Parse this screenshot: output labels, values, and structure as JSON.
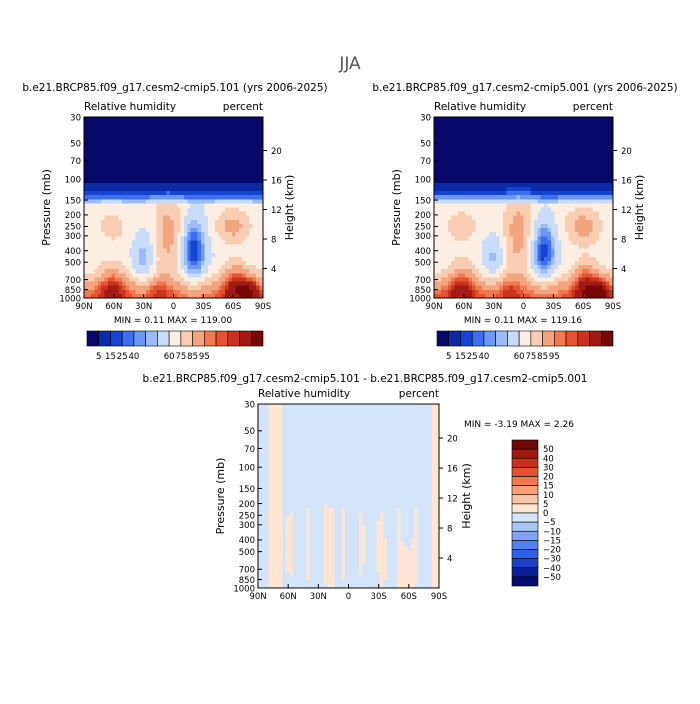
{
  "figure": {
    "season": "JJA"
  },
  "colors": {
    "rh": [
      "#08086b",
      "#0a2aa6",
      "#1444d4",
      "#3d6ef0",
      "#6a98f5",
      "#9bbcf5",
      "#c9dcf7",
      "#fbeee2",
      "#f8cdb2",
      "#f4a57e",
      "#ef7a51",
      "#e55430",
      "#c9331e",
      "#a11b14",
      "#76080a"
    ],
    "diff": [
      "#060a6e",
      "#0a2299",
      "#1742c8",
      "#2d60e8",
      "#4f82f0",
      "#7ea5f3",
      "#a9c5f5",
      "#d4e5fa",
      "#fde7d4",
      "#f9c7a6",
      "#f6a176",
      "#f07a4e",
      "#e25430",
      "#c8301c",
      "#a01810",
      "#720707"
    ]
  },
  "chart_data": [
    {
      "type": "contour",
      "title": "b.e21.BRCP85.f09_g17.cesm2-cmip5.101 (yrs 2006-2025)",
      "left_label": "Relative humidity",
      "right_label": "percent",
      "xlabel": "",
      "ylabel": "Pressure (mb)",
      "y2label": "Height (km)",
      "x_ticks": [
        "90N",
        "60N",
        "30N",
        "0",
        "30S",
        "60S",
        "90S"
      ],
      "y_ticks": [
        {
          "p": 30,
          "label": "30"
        },
        {
          "p": 50,
          "label": "50"
        },
        {
          "p": 70,
          "label": "70"
        },
        {
          "p": 100,
          "label": "100"
        },
        {
          "p": 150,
          "label": "150"
        },
        {
          "p": 200,
          "label": "200"
        },
        {
          "p": 250,
          "label": "250"
        },
        {
          "p": 300,
          "label": "300"
        },
        {
          "p": 400,
          "label": "400"
        },
        {
          "p": 500,
          "label": "500"
        },
        {
          "p": 700,
          "label": "700"
        },
        {
          "p": 850,
          "label": "850"
        },
        {
          "p": 1000,
          "label": "1000"
        }
      ],
      "y2_ticks": [
        {
          "km": 20,
          "label": "20"
        },
        {
          "km": 16,
          "label": "16"
        },
        {
          "km": 12,
          "label": "12"
        },
        {
          "km": 8,
          "label": "8"
        },
        {
          "km": 4,
          "label": "4"
        }
      ],
      "stats": {
        "min_label": "MIN =",
        "min": "0.11",
        "max_label": "MAX =",
        "max": "119.00"
      },
      "colorbar": {
        "orientation": "horizontal",
        "labels": [
          "5",
          "15",
          "25",
          "40",
          "60",
          "75",
          "85",
          "95"
        ]
      }
    },
    {
      "type": "contour",
      "title": "b.e21.BRCP85.f09_g17.cesm2-cmip5.001 (yrs 2006-2025)",
      "left_label": "Relative humidity",
      "right_label": "percent",
      "xlabel": "",
      "ylabel": "Pressure (mb)",
      "y2label": "Height (km)",
      "x_ticks": [
        "90N",
        "60N",
        "30N",
        "0",
        "30S",
        "60S",
        "90S"
      ],
      "y_ticks": [
        {
          "p": 30,
          "label": "30"
        },
        {
          "p": 50,
          "label": "50"
        },
        {
          "p": 70,
          "label": "70"
        },
        {
          "p": 100,
          "label": "100"
        },
        {
          "p": 150,
          "label": "150"
        },
        {
          "p": 200,
          "label": "200"
        },
        {
          "p": 250,
          "label": "250"
        },
        {
          "p": 300,
          "label": "300"
        },
        {
          "p": 400,
          "label": "400"
        },
        {
          "p": 500,
          "label": "500"
        },
        {
          "p": 700,
          "label": "700"
        },
        {
          "p": 850,
          "label": "850"
        },
        {
          "p": 1000,
          "label": "1000"
        }
      ],
      "y2_ticks": [
        {
          "km": 20,
          "label": "20"
        },
        {
          "km": 16,
          "label": "16"
        },
        {
          "km": 12,
          "label": "12"
        },
        {
          "km": 8,
          "label": "8"
        },
        {
          "km": 4,
          "label": "4"
        }
      ],
      "stats": {
        "min_label": "MIN =",
        "min": "0.11",
        "max_label": "MAX =",
        "max": "119.16"
      },
      "colorbar": {
        "orientation": "horizontal",
        "labels": [
          "5",
          "15",
          "25",
          "40",
          "60",
          "75",
          "85",
          "95"
        ]
      }
    },
    {
      "type": "contour",
      "title": "b.e21.BRCP85.f09_g17.cesm2-cmip5.101 - b.e21.BRCP85.f09_g17.cesm2-cmip5.001",
      "left_label": "Relative humidity",
      "right_label": "percent",
      "xlabel": "",
      "ylabel": "Pressure (mb)",
      "y2label": "Height (km)",
      "x_ticks": [
        "90N",
        "60N",
        "30N",
        "0",
        "30S",
        "60S",
        "90S"
      ],
      "y_ticks": [
        {
          "p": 30,
          "label": "30"
        },
        {
          "p": 50,
          "label": "50"
        },
        {
          "p": 70,
          "label": "70"
        },
        {
          "p": 100,
          "label": "100"
        },
        {
          "p": 150,
          "label": "150"
        },
        {
          "p": 200,
          "label": "200"
        },
        {
          "p": 250,
          "label": "250"
        },
        {
          "p": 300,
          "label": "300"
        },
        {
          "p": 400,
          "label": "400"
        },
        {
          "p": 500,
          "label": "500"
        },
        {
          "p": 700,
          "label": "700"
        },
        {
          "p": 850,
          "label": "850"
        },
        {
          "p": 1000,
          "label": "1000"
        }
      ],
      "y2_ticks": [
        {
          "km": 20,
          "label": "20"
        },
        {
          "km": 16,
          "label": "16"
        },
        {
          "km": 12,
          "label": "12"
        },
        {
          "km": 8,
          "label": "8"
        },
        {
          "km": 4,
          "label": "4"
        }
      ],
      "stats": {
        "min_label": "MIN =",
        "min": "-3.19",
        "max_label": "MAX =",
        "max": "2.26"
      },
      "colorbar": {
        "orientation": "vertical",
        "labels": [
          "50",
          "40",
          "30",
          "20",
          "15",
          "10",
          "5",
          "0",
          "−5",
          "−10",
          "−15",
          "−20",
          "−30",
          "−40",
          "−50"
        ]
      }
    }
  ]
}
